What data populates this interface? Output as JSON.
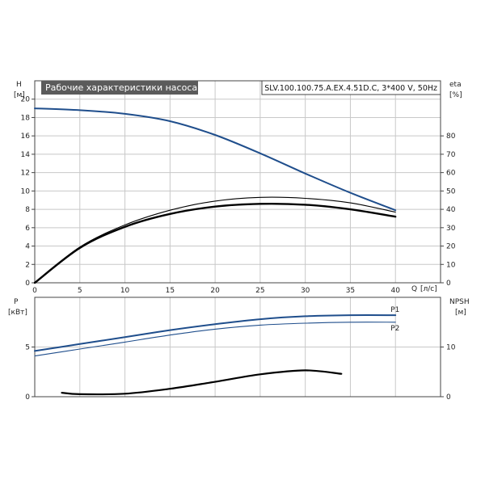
{
  "colors": {
    "curve_blue": "#1f4e8c",
    "curve_black": "#000000",
    "grid": "#c8c8c8",
    "frame": "#444444",
    "title_bg": "#5b5b5b"
  },
  "chart_data": [
    {
      "type": "line",
      "title": "Рабочие характеристики насоса",
      "subtitle": "SLV.100.100.75.A.EX.4.51D.C, 3*400 V, 50Hz",
      "xlabel": "Q [л/с]",
      "x_axis_name": "Q",
      "x_axis_unit": "[л/с]",
      "ylabel_left": "H",
      "ylabel_left_unit": "[м]",
      "ylabel_right": "eta",
      "ylabel_right_unit": "[%]",
      "xlim": [
        0,
        45
      ],
      "ylim_left": [
        0,
        22
      ],
      "ylim_right": [
        0,
        110
      ],
      "xticks": [
        "0",
        "5",
        "10",
        "15",
        "20",
        "25",
        "30",
        "35",
        "40"
      ],
      "yticks_left": [
        "0",
        "2",
        "4",
        "6",
        "8",
        "10",
        "12",
        "14",
        "16",
        "18",
        "20"
      ],
      "yticks_right": [
        "0",
        "10",
        "20",
        "30",
        "40",
        "50",
        "60",
        "70",
        "80"
      ],
      "grid": true,
      "series": [
        {
          "name": "H",
          "axis": "left",
          "color": "#1f4e8c",
          "x": [
            0,
            5,
            10,
            15,
            20,
            25,
            30,
            35,
            40
          ],
          "y": [
            19.0,
            18.8,
            18.4,
            17.6,
            16.1,
            14.1,
            11.9,
            9.8,
            7.9
          ]
        },
        {
          "name": "eta",
          "axis": "right",
          "color": "#000000",
          "x": [
            0,
            5,
            10,
            15,
            20,
            25,
            30,
            35,
            40
          ],
          "y": [
            0,
            19.5,
            31.5,
            39.5,
            44.5,
            46.5,
            46.0,
            43.5,
            38.5
          ]
        },
        {
          "name": "eta",
          "axis": "right",
          "color": "#000000",
          "x": [
            0,
            5,
            10,
            15,
            20,
            25,
            30,
            35,
            40
          ],
          "y": [
            0,
            19.0,
            30.5,
            37.5,
            41.5,
            43.0,
            42.5,
            40.0,
            36.0
          ]
        }
      ]
    },
    {
      "type": "line",
      "xlim": [
        0,
        45
      ],
      "ylabel_left": "P",
      "ylabel_left_unit": "[кВт]",
      "ylabel_right": "NPSH",
      "ylabel_right_unit": "[м]",
      "ylim_left": [
        0,
        10
      ],
      "ylim_right": [
        0,
        20
      ],
      "yticks_left": [
        "0",
        "5"
      ],
      "yticks_right": [
        "0",
        "10"
      ],
      "grid": true,
      "series": [
        {
          "name": "P1",
          "axis": "left",
          "color": "#1f4e8c",
          "x": [
            0,
            5,
            10,
            15,
            20,
            25,
            30,
            35,
            40
          ],
          "y": [
            4.6,
            5.3,
            6.0,
            6.7,
            7.3,
            7.8,
            8.1,
            8.2,
            8.2
          ]
        },
        {
          "name": "P2",
          "axis": "left",
          "color": "#1f4e8c",
          "x": [
            0,
            5,
            10,
            15,
            20,
            25,
            30,
            35,
            40
          ],
          "y": [
            4.1,
            4.8,
            5.5,
            6.2,
            6.8,
            7.2,
            7.4,
            7.5,
            7.5
          ]
        },
        {
          "name": "NPSH",
          "axis": "right",
          "color": "#000000",
          "x": [
            3,
            5,
            10,
            15,
            20,
            25,
            30,
            34
          ],
          "y": [
            0.8,
            0.5,
            0.6,
            1.6,
            3.0,
            4.5,
            5.3,
            4.6
          ]
        }
      ]
    }
  ]
}
